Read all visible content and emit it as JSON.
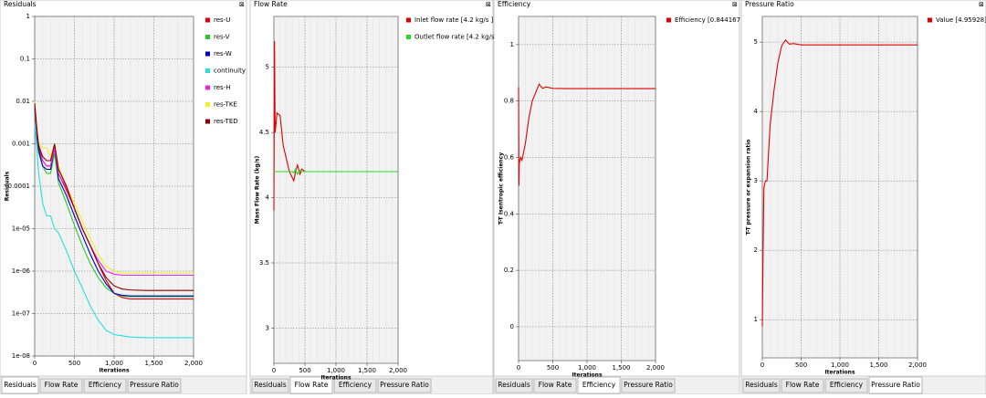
{
  "panels": [
    {
      "title": "Residuals",
      "tabs": [
        "Residuals",
        "Flow Rate",
        "Efficiency",
        "Pressure Ratio"
      ],
      "active_tab": 0
    },
    {
      "title": "Flow Rate",
      "tabs": [
        "Residuals",
        "Flow Rate",
        "Efficiency",
        "Pressure Ratio"
      ],
      "active_tab": 1
    },
    {
      "title": "Efficiency",
      "tabs": [
        "Residuals",
        "Flow Rate",
        "Efficiency",
        "Pressure Ratio"
      ],
      "active_tab": 2
    },
    {
      "title": "Pressure Ratio",
      "tabs": [
        "Residuals",
        "Flow Rate",
        "Efficiency",
        "Pressure Ratio"
      ],
      "active_tab": 3
    }
  ],
  "chart_data": [
    {
      "type": "line",
      "y_label": "Residuals",
      "x_label": "Iterations",
      "log_y": true,
      "grid": true,
      "xlim": [
        0,
        2000
      ],
      "xticks": [
        0,
        500,
        {
          "value": 1000,
          "label": "1,000"
        },
        {
          "value": 1500,
          "label": "1,500"
        },
        {
          "value": 2000,
          "label": "2,000"
        }
      ],
      "ylim": [
        1e-08,
        1
      ],
      "yticks": [
        1,
        0.1,
        0.01,
        0.001,
        0.0001,
        {
          "value": 1e-05,
          "label": "1e-05"
        },
        {
          "value": 1e-06,
          "label": "1e-06"
        },
        {
          "value": 1e-07,
          "label": "1e-07"
        },
        {
          "value": 1e-08,
          "label": "1e-08"
        }
      ],
      "x": [
        0,
        25,
        50,
        100,
        150,
        200,
        250,
        300,
        400,
        500,
        600,
        700,
        800,
        900,
        1000,
        1100,
        1200,
        1400,
        1600,
        2000
      ],
      "series": [
        {
          "name": "res-U",
          "color": "#e00000",
          "values": [
            0.008,
            0.002,
            0.0008,
            0.0004,
            0.0003,
            0.0003,
            0.0009,
            0.0002,
            8e-05,
            3e-05,
            1e-05,
            4e-06,
            1.5e-06,
            6e-07,
            3e-07,
            2.4e-07,
            2.2e-07,
            2.2e-07,
            2.2e-07,
            2.2e-07
          ]
        },
        {
          "name": "res-V",
          "color": "#22cc22",
          "values": [
            0.006,
            0.0015,
            0.0006,
            0.0003,
            0.0002,
            0.0002,
            0.0006,
            0.00012,
            4e-05,
            1.2e-05,
            4e-06,
            1.5e-06,
            7e-07,
            4e-07,
            3e-07,
            2.6e-07,
            2.5e-07,
            2.5e-07,
            2.5e-07,
            2.5e-07
          ]
        },
        {
          "name": "res-W",
          "color": "#0000cc",
          "values": [
            0.007,
            0.0018,
            0.0007,
            0.0003,
            0.00025,
            0.00025,
            0.0008,
            0.00015,
            6e-05,
            2e-05,
            7e-06,
            2.5e-06,
            1e-06,
            5e-07,
            3e-07,
            2.7e-07,
            2.6e-07,
            2.6e-07,
            2.6e-07,
            2.6e-07
          ]
        },
        {
          "name": "continuity",
          "color": "#22e0e0",
          "values": [
            0.003,
            0.0008,
            0.0002,
            4e-05,
            2e-05,
            2e-05,
            1e-05,
            8e-06,
            3e-06,
            1e-06,
            4e-07,
            1.5e-07,
            7e-08,
            4e-08,
            3.2e-08,
            3e-08,
            2.8e-08,
            2.7e-08,
            2.7e-08,
            2.7e-08
          ]
        },
        {
          "name": "res-H",
          "color": "#ee22ee",
          "values": [
            0.008,
            0.002,
            0.001,
            0.0004,
            0.0003,
            0.0003,
            0.0008,
            0.0002,
            9e-05,
            3e-05,
            1e-05,
            4e-06,
            1.8e-06,
            1e-06,
            8.5e-07,
            8e-07,
            8e-07,
            8e-07,
            8e-07,
            8e-07
          ]
        },
        {
          "name": "res-TKE",
          "color": "#f0f022",
          "values": [
            0.01,
            0.003,
            0.001,
            0.0008,
            0.0008,
            0.0005,
            0.001,
            0.0003,
            0.0001,
            4e-05,
            1.5e-05,
            6e-06,
            2.5e-06,
            1.3e-06,
            1e-06,
            9e-07,
            9e-07,
            9e-07,
            9e-07,
            9e-07
          ]
        },
        {
          "name": "res-TED",
          "color": "#8b0000",
          "values": [
            0.009,
            0.0025,
            0.0009,
            0.0005,
            0.0004,
            0.0004,
            0.001,
            0.00025,
            0.0001,
            3e-05,
            1e-05,
            4e-06,
            1.5e-06,
            7e-07,
            4.5e-07,
            3.8e-07,
            3.6e-07,
            3.5e-07,
            3.5e-07,
            3.5e-07
          ]
        }
      ]
    },
    {
      "type": "line",
      "y_label": "Mass Flow Rate (kg/s)",
      "x_label": "Iterations",
      "log_y": false,
      "grid": true,
      "xlim": [
        0,
        2000
      ],
      "xticks": [
        0,
        500,
        {
          "value": 1000,
          "label": "1,000"
        },
        {
          "value": 1500,
          "label": "1,500"
        },
        {
          "value": 2000,
          "label": "2,000"
        }
      ],
      "ylim": [
        2.73,
        5.39
      ],
      "yticks": [
        3,
        3.5,
        4,
        4.5,
        5
      ],
      "x": [
        0,
        5,
        10,
        20,
        50,
        100,
        150,
        200,
        250,
        300,
        320,
        350,
        380,
        420,
        450,
        500,
        600,
        700,
        1000,
        1500,
        2000
      ],
      "series": [
        {
          "name": "Inlet flow rate [4.2 kg/s ]",
          "color": "#e00000",
          "values": [
            3.9,
            4.6,
            5.2,
            4.5,
            4.65,
            4.63,
            4.4,
            4.3,
            4.2,
            4.15,
            4.13,
            4.2,
            4.25,
            4.18,
            4.22,
            4.2,
            4.2,
            4.2,
            null,
            null,
            null
          ]
        },
        {
          "name": "Outlet flow rate [4.2 kg/s",
          "color": "#22dd22",
          "values": [
            4.2,
            4.2,
            4.2,
            4.2,
            4.2,
            4.2,
            4.2,
            4.2,
            4.2,
            4.2,
            4.19,
            4.22,
            4.18,
            4.21,
            4.2,
            4.2,
            4.2,
            4.2,
            4.2,
            4.2,
            4.2
          ]
        }
      ]
    },
    {
      "type": "line",
      "y_label": "T-T Isentropic efficiency",
      "x_label": "Iterations",
      "log_y": false,
      "grid": true,
      "xlim": [
        0,
        2000
      ],
      "xticks": [
        0,
        500,
        {
          "value": 1000,
          "label": "1,000"
        },
        {
          "value": 1500,
          "label": "1,500"
        },
        {
          "value": 2000,
          "label": "2,000"
        }
      ],
      "ylim": [
        -0.12,
        1.1
      ],
      "yticks": [
        0,
        0.2,
        0.4,
        0.6,
        0.8,
        1
      ],
      "x": [
        0,
        5,
        10,
        30,
        50,
        100,
        150,
        200,
        250,
        300,
        350,
        400,
        500,
        700,
        1000,
        2000
      ],
      "series": [
        {
          "name": "Efficiency [0.844167",
          "color": "#e00000",
          "values": [
            0.85,
            0.5,
            0.58,
            0.6,
            0.59,
            0.65,
            0.74,
            0.8,
            0.83,
            0.86,
            0.845,
            0.85,
            0.845,
            0.844,
            0.844,
            0.844
          ]
        }
      ]
    },
    {
      "type": "line",
      "y_label": "T-T pressure or expansion ratio",
      "x_label": "Iterations",
      "log_y": false,
      "grid": true,
      "xlim": [
        0,
        2000
      ],
      "xticks": [
        0,
        500,
        {
          "value": 1000,
          "label": "1,000"
        },
        {
          "value": 1500,
          "label": "1,500"
        },
        {
          "value": 2000,
          "label": "2,000"
        }
      ],
      "ylim": [
        0.45,
        5.37
      ],
      "yticks": [
        1,
        2,
        3,
        4,
        5
      ],
      "x": [
        0,
        10,
        20,
        40,
        60,
        100,
        150,
        200,
        250,
        300,
        350,
        400,
        500,
        700,
        1000,
        2000
      ],
      "series": [
        {
          "name": "Value [4.95928]",
          "color": "#e00000",
          "values": [
            0.9,
            2.0,
            2.9,
            3.0,
            3.0,
            3.8,
            4.3,
            4.7,
            4.95,
            5.03,
            4.97,
            4.98,
            4.96,
            4.96,
            4.96,
            4.96
          ]
        }
      ]
    }
  ]
}
